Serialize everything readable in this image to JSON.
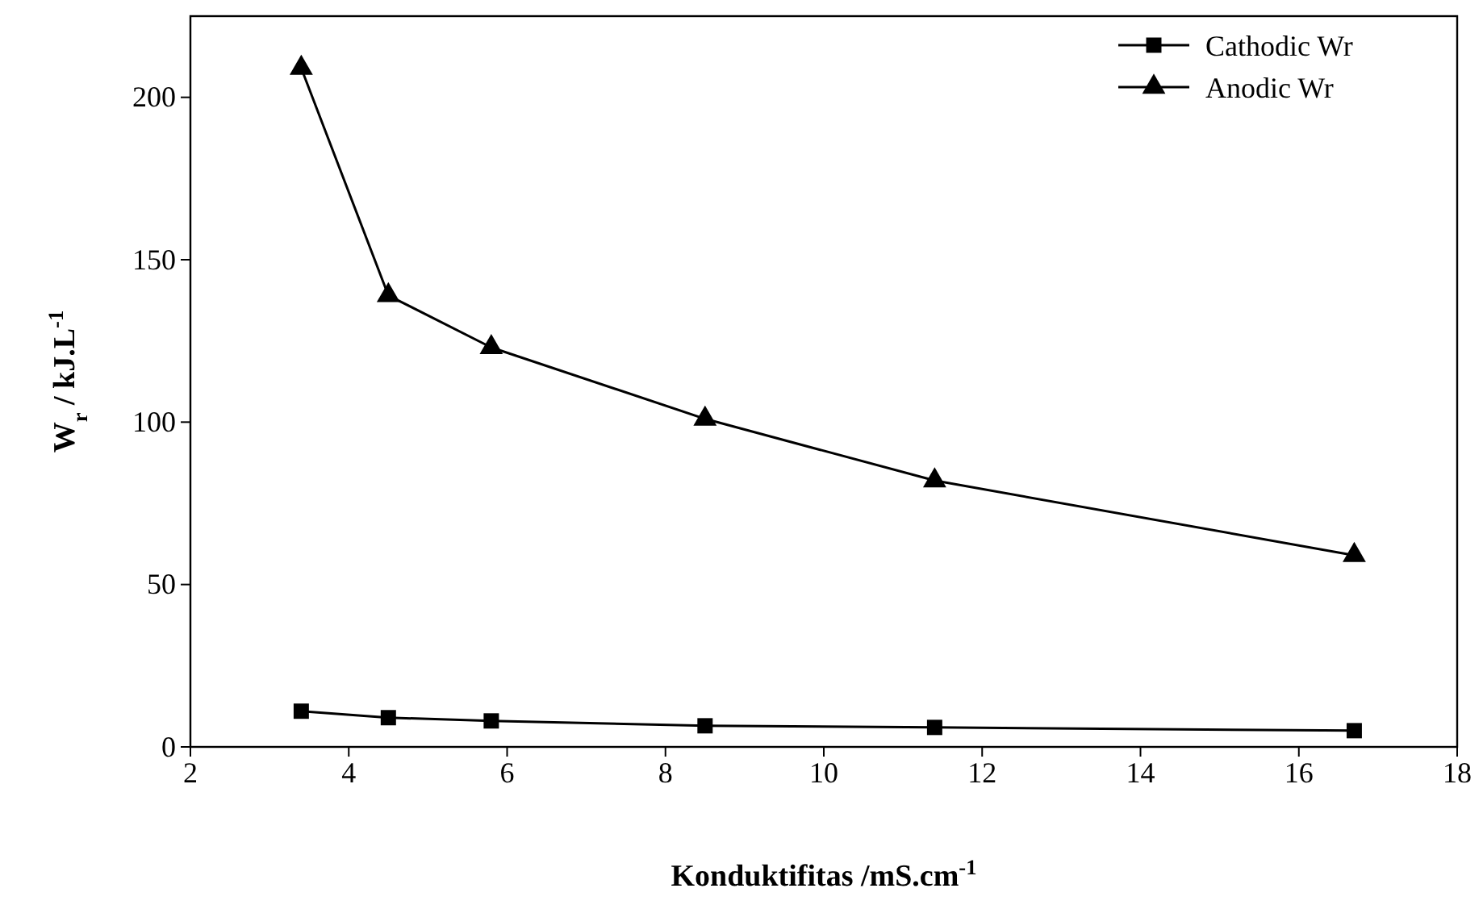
{
  "chart_data": {
    "type": "line",
    "xlabel": "Konduktifitas  /mS.cm$^{-1}$",
    "ylabel": "W$_{r}$ / kJ.L$^{-1}$",
    "x": [
      3.4,
      4.5,
      5.8,
      8.5,
      11.4,
      16.7
    ],
    "series": [
      {
        "name": "Cathodic Wr",
        "color": "#000000",
        "marker": "square",
        "values": [
          11,
          9,
          8,
          6.5,
          6,
          5
        ]
      },
      {
        "name": "Anodic Wr",
        "color": "#000000",
        "marker": "triangle",
        "values": [
          209,
          139,
          123,
          101,
          82,
          59
        ]
      }
    ],
    "xlim": [
      2,
      18
    ],
    "xticks": [
      2,
      4,
      6,
      8,
      10,
      12,
      14,
      16,
      18
    ],
    "ylim": [
      0,
      225
    ],
    "yticks": [
      0,
      50,
      100,
      150,
      200
    ],
    "legend": "top right",
    "line_style": "solid",
    "grid": false
  }
}
